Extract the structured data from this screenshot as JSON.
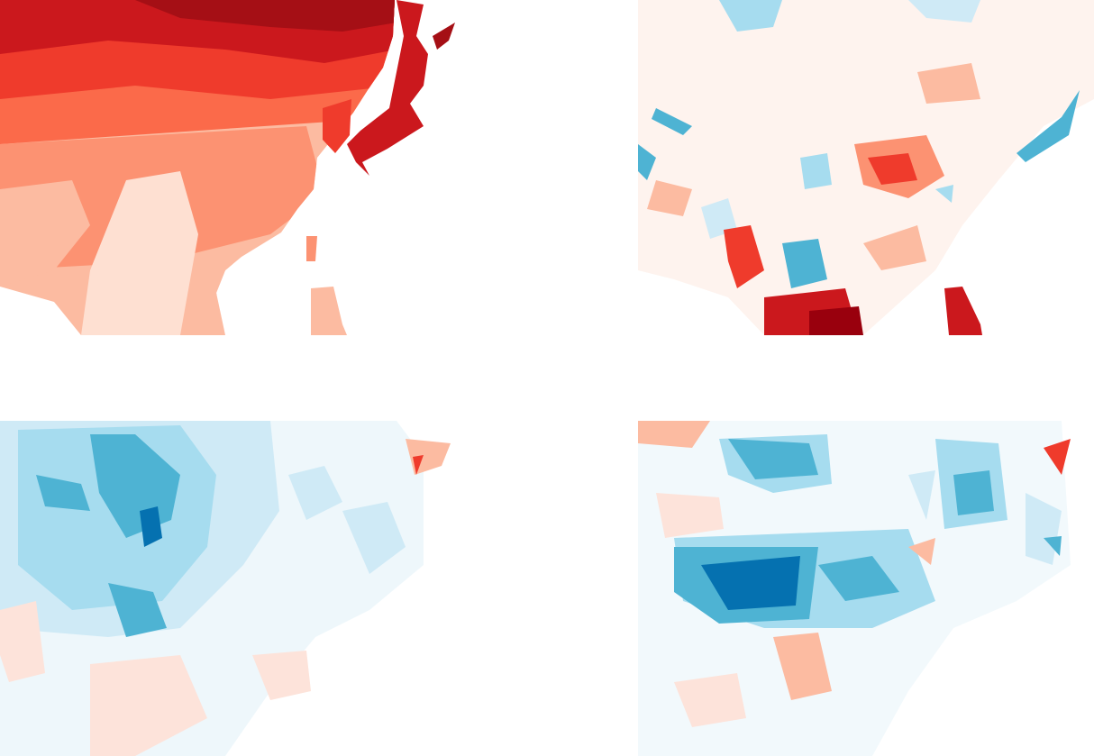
{
  "figure": {
    "panels": [
      {
        "id": "panel-tl",
        "kind": "sequential",
        "palette": [
          "#fee0d2",
          "#fcbba1",
          "#fc9272",
          "#fb6a4a",
          "#ef3b2c",
          "#cb181d",
          "#a50f15"
        ]
      },
      {
        "id": "panel-tr",
        "kind": "diverging",
        "palette": [
          "#0571b0",
          "#4eb3d3",
          "#a6dcef",
          "#ffffff",
          "#fcbba1",
          "#ef3b2c",
          "#99000d"
        ]
      },
      {
        "id": "panel-bl",
        "kind": "diverging",
        "palette": [
          "#0571b0",
          "#4eb3d3",
          "#a6dcef",
          "#ffffff",
          "#fcbba1",
          "#ef3b2c",
          "#99000d"
        ]
      },
      {
        "id": "panel-br",
        "kind": "diverging",
        "palette": [
          "#0571b0",
          "#4eb3d3",
          "#a6dcef",
          "#ffffff",
          "#fcbba1",
          "#ef3b2c",
          "#99000d"
        ]
      }
    ]
  }
}
